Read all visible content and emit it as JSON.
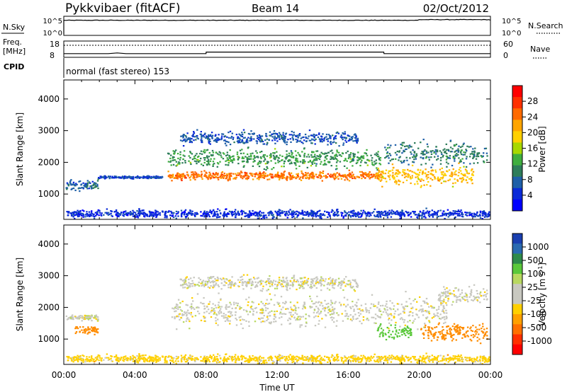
{
  "header": {
    "station": "Pykkvibaer (fitACF)",
    "beam": "Beam 14",
    "date": "02/Oct/2012"
  },
  "top_panels": {
    "nsky_label": "N.Sky",
    "nsearch_label": "N.Search",
    "noise_ticks": [
      "10^5",
      "10^0"
    ],
    "freq_label": "Freq.",
    "freq_unit": "[MHz]",
    "freq_ticks": [
      "18",
      "8"
    ],
    "nave_label": "Nave",
    "nave_ticks": [
      "60",
      "0"
    ],
    "cpid_label": "CPID",
    "cpid_value": "normal (fast stereo) 153"
  },
  "colorbars": {
    "power": {
      "label": "Power [dB]",
      "ticks": [
        "28",
        "24",
        "20",
        "16",
        "12",
        "8",
        "4"
      ],
      "colors": [
        "#ff0000",
        "#ff3000",
        "#ff6a00",
        "#ffa500",
        "#ffd000",
        "#a8d800",
        "#3fae3f",
        "#2e7d5a",
        "#1e5fa8",
        "#0a2ad8",
        "#0000ff"
      ]
    },
    "velocity": {
      "label": "Velocity [m s",
      "label_sup": "-1",
      "label_end": "]",
      "ticks": [
        "1000",
        "500",
        "100",
        "25",
        "-25",
        "-100",
        "-500",
        "-1000"
      ],
      "colors": [
        "#1a3fb0",
        "#2a6ab0",
        "#2e8a4a",
        "#5ac83a",
        "#b8d860",
        "#c8c8c0",
        "#c8c8c0",
        "#ffd000",
        "#ffa000",
        "#ff7000",
        "#ff3000",
        "#ff0000"
      ]
    }
  },
  "chart_data": [
    {
      "type": "line",
      "title": "N.Sky / N.Search",
      "y_scale": "log",
      "ylim": [
        "10^0",
        "10^5"
      ],
      "x": [
        "00:00",
        "04:00",
        "08:00",
        "12:00",
        "16:00",
        "20:00",
        "24:00"
      ],
      "series": [
        {
          "name": "N.Sky",
          "values": [
            4.2,
            4.2,
            4.2,
            4.2,
            4.2,
            4.4,
            4.3
          ]
        }
      ]
    },
    {
      "type": "line",
      "title": "Freq. [MHz] / Nave",
      "ylim": [
        8,
        18
      ],
      "x_hours": [
        0,
        2.5,
        3,
        3.5,
        8,
        8.01,
        18,
        18.01,
        24
      ],
      "series": [
        {
          "name": "Freq. [MHz]",
          "values": [
            10.1,
            10.1,
            10.6,
            10.1,
            10.1,
            11.2,
            11.2,
            10.1,
            10.1
          ]
        },
        {
          "name": "Nave",
          "values": [
            48,
            48,
            48,
            48,
            48,
            48,
            48,
            48,
            48
          ]
        }
      ]
    },
    {
      "type": "heatmap",
      "title": "Power [dB]",
      "xlabel": "",
      "ylabel": "Slant Range [km]",
      "x_ticks": [
        "00:00",
        "04:00",
        "08:00",
        "12:00",
        "16:00",
        "20:00",
        "00:00"
      ],
      "y_ticks": [
        "1000",
        "2000",
        "3000",
        "4000"
      ],
      "xlim_hours": [
        0,
        24
      ],
      "ylim_km": [
        200,
        4600
      ],
      "bands": [
        {
          "t0": 0.1,
          "t1": 1.9,
          "r_center": 1300,
          "r_width": 400,
          "value_db": 8
        },
        {
          "t0": 1.9,
          "t1": 5.5,
          "r_center": 1550,
          "r_width": 100,
          "value_db": 6
        },
        {
          "t0": 5.8,
          "t1": 17.8,
          "r_center": 1600,
          "r_width": 300,
          "value_db": 24
        },
        {
          "t0": 5.8,
          "t1": 17.8,
          "r_center": 2150,
          "r_width": 700,
          "value_db": 12
        },
        {
          "t0": 6.5,
          "t1": 16.5,
          "r_center": 2800,
          "r_width": 500,
          "value_db": 7
        },
        {
          "t0": 17.5,
          "t1": 23.0,
          "r_center": 1600,
          "r_width": 700,
          "value_db": 20
        },
        {
          "t0": 18.0,
          "t1": 23.8,
          "r_center": 2300,
          "r_width": 900,
          "value_db": 10
        },
        {
          "t0": 0.1,
          "t1": 23.9,
          "r_center": 400,
          "r_width": 300,
          "value_db": 5
        }
      ]
    },
    {
      "type": "heatmap",
      "title": "Velocity [m s-1]",
      "xlabel": "Time UT",
      "ylabel": "Slant Range [km]",
      "x_ticks": [
        "00:00",
        "04:00",
        "08:00",
        "12:00",
        "16:00",
        "20:00",
        "00:00"
      ],
      "y_ticks": [
        "1000",
        "2000",
        "3000",
        "4000"
      ],
      "xlim_hours": [
        0,
        24
      ],
      "ylim_km": [
        200,
        4600
      ],
      "bands": [
        {
          "t0": 0.1,
          "t1": 1.9,
          "r_center": 1700,
          "r_width": 200,
          "value_ms": 0
        },
        {
          "t0": 0.6,
          "t1": 1.9,
          "r_center": 1300,
          "r_width": 300,
          "value_ms": -300
        },
        {
          "t0": 6.0,
          "t1": 21.5,
          "r_center": 1900,
          "r_width": 1100,
          "value_ms": 0
        },
        {
          "t0": 6.5,
          "t1": 16.5,
          "r_center": 2800,
          "r_width": 500,
          "value_ms": 0
        },
        {
          "t0": 17.6,
          "t1": 19.5,
          "r_center": 1250,
          "r_width": 500,
          "value_ms": 120
        },
        {
          "t0": 20.0,
          "t1": 23.8,
          "r_center": 1250,
          "r_width": 700,
          "value_ms": -300
        },
        {
          "t0": 21.0,
          "t1": 23.8,
          "r_center": 2400,
          "r_width": 700,
          "value_ms": 0
        },
        {
          "t0": 0.1,
          "t1": 23.9,
          "r_center": 400,
          "r_width": 300,
          "value_ms": -50
        }
      ]
    }
  ],
  "time_axis_label": "Time UT",
  "range_axis_label": "Slant Range [km]"
}
